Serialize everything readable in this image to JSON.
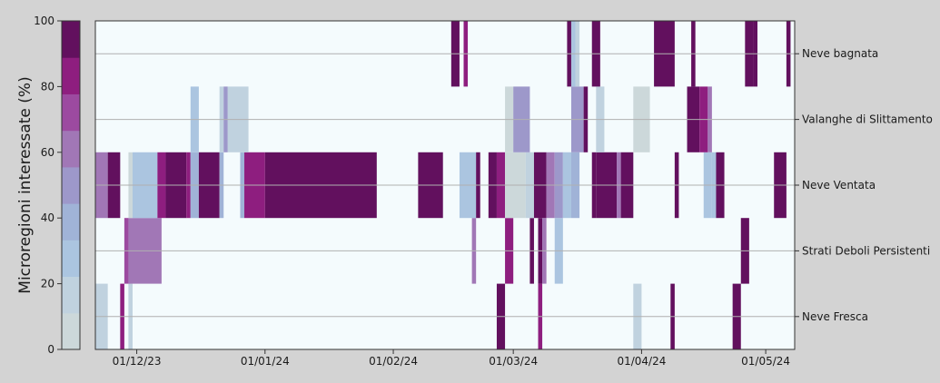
{
  "chart_data": {
    "type": "heatmap",
    "ylabel": "Microregioni interessate (%)",
    "yticks": [
      "0",
      "20",
      "40",
      "60",
      "80",
      "100"
    ],
    "ylim": [
      0,
      100
    ],
    "xlim": [
      "2023-11-21",
      "2024-05-08"
    ],
    "xticks": [
      {
        "date": "2023-12-01",
        "label": "01/12/23"
      },
      {
        "date": "2024-01-01",
        "label": "01/01/24"
      },
      {
        "date": "2024-02-01",
        "label": "01/02/24"
      },
      {
        "date": "2024-03-01",
        "label": "01/03/24"
      },
      {
        "date": "2024-04-01",
        "label": "01/04/24"
      },
      {
        "date": "2024-05-01",
        "label": "01/05/24"
      }
    ],
    "categories": [
      "Neve Fresca",
      "Strati Deboli Persistenti",
      "Neve Ventata",
      "Valanghe di Slittamento",
      "Neve bagnata"
    ],
    "colorbar": {
      "min": 0,
      "max": 100,
      "colors": [
        "#ccd8da",
        "#c0d2df",
        "#abc5e0",
        "#a0b3d7",
        "#9d98ca",
        "#a177b6",
        "#9c4aa0",
        "#8e1e7f",
        "#62105e"
      ]
    },
    "series": [
      {
        "category": "Neve Fresca",
        "days": [
          {
            "start": "2023-11-21",
            "end": "2023-11-21",
            "value": 0
          },
          {
            "start": "2023-11-21",
            "end": "2023-11-24",
            "value": 20
          },
          {
            "start": "2023-11-27",
            "end": "2023-11-28",
            "value": 88
          },
          {
            "start": "2023-11-29",
            "end": "2023-11-29",
            "value": 35
          },
          {
            "start": "2023-11-29",
            "end": "2023-11-30",
            "value": 20
          },
          {
            "start": "2024-02-26",
            "end": "2024-02-28",
            "value": 100
          },
          {
            "start": "2024-03-07",
            "end": "2024-03-08",
            "value": 85
          },
          {
            "start": "2024-03-30",
            "end": "2024-04-01",
            "value": 20
          },
          {
            "start": "2024-04-08",
            "end": "2024-04-09",
            "value": 100
          },
          {
            "start": "2024-04-23",
            "end": "2024-04-25",
            "value": 100
          }
        ]
      },
      {
        "category": "Strati Deboli Persistenti",
        "days": [
          {
            "start": "2023-11-28",
            "end": "2023-11-29",
            "value": 75
          },
          {
            "start": "2023-11-29",
            "end": "2023-12-07",
            "value": 65
          },
          {
            "start": "2024-02-20",
            "end": "2024-02-21",
            "value": 65
          },
          {
            "start": "2024-02-28",
            "end": "2024-03-01",
            "value": 78
          },
          {
            "start": "2024-03-05",
            "end": "2024-03-06",
            "value": 100
          },
          {
            "start": "2024-03-07",
            "end": "2024-03-08",
            "value": 90
          },
          {
            "start": "2024-03-08",
            "end": "2024-03-09",
            "value": 60
          },
          {
            "start": "2024-03-11",
            "end": "2024-03-13",
            "value": 30
          },
          {
            "start": "2024-04-25",
            "end": "2024-04-27",
            "value": 100
          }
        ]
      },
      {
        "category": "Neve Ventata",
        "days": [
          {
            "start": "2023-11-21",
            "end": "2023-11-24",
            "value": 60
          },
          {
            "start": "2023-11-24",
            "end": "2023-11-27",
            "value": 100
          },
          {
            "start": "2023-11-29",
            "end": "2023-11-30",
            "value": 10
          },
          {
            "start": "2023-11-30",
            "end": "2023-12-06",
            "value": 30
          },
          {
            "start": "2023-12-06",
            "end": "2023-12-08",
            "value": 85
          },
          {
            "start": "2023-12-08",
            "end": "2023-12-13",
            "value": 100
          },
          {
            "start": "2023-12-13",
            "end": "2023-12-14",
            "value": 85
          },
          {
            "start": "2023-12-14",
            "end": "2023-12-16",
            "value": 35
          },
          {
            "start": "2023-12-16",
            "end": "2023-12-21",
            "value": 100
          },
          {
            "start": "2023-12-21",
            "end": "2023-12-22",
            "value": 40
          },
          {
            "start": "2023-12-26",
            "end": "2023-12-27",
            "value": 40
          },
          {
            "start": "2023-12-27",
            "end": "2024-01-01",
            "value": 85
          },
          {
            "start": "2024-01-01",
            "end": "2024-01-28",
            "value": 100
          },
          {
            "start": "2024-02-07",
            "end": "2024-02-13",
            "value": 100
          },
          {
            "start": "2024-02-17",
            "end": "2024-02-21",
            "value": 25
          },
          {
            "start": "2024-02-21",
            "end": "2024-02-22",
            "value": 100
          },
          {
            "start": "2024-02-24",
            "end": "2024-02-26",
            "value": 100
          },
          {
            "start": "2024-02-26",
            "end": "2024-02-28",
            "value": 85
          },
          {
            "start": "2024-02-28",
            "end": "2024-03-04",
            "value": 10
          },
          {
            "start": "2024-03-04",
            "end": "2024-03-06",
            "value": 20
          },
          {
            "start": "2024-03-06",
            "end": "2024-03-09",
            "value": 100
          },
          {
            "start": "2024-03-09",
            "end": "2024-03-11",
            "value": 60
          },
          {
            "start": "2024-03-11",
            "end": "2024-03-13",
            "value": 45
          },
          {
            "start": "2024-03-13",
            "end": "2024-03-15",
            "value": 30
          },
          {
            "start": "2024-03-15",
            "end": "2024-03-17",
            "value": 35
          },
          {
            "start": "2024-03-20",
            "end": "2024-03-21",
            "value": 100
          },
          {
            "start": "2024-03-21",
            "end": "2024-03-26",
            "value": 100
          },
          {
            "start": "2024-03-26",
            "end": "2024-03-27",
            "value": 60
          },
          {
            "start": "2024-03-27",
            "end": "2024-03-30",
            "value": 100
          },
          {
            "start": "2024-04-09",
            "end": "2024-04-10",
            "value": 100
          },
          {
            "start": "2024-04-16",
            "end": "2024-04-18",
            "value": 25
          },
          {
            "start": "2024-04-18",
            "end": "2024-04-19",
            "value": 30
          },
          {
            "start": "2024-04-19",
            "end": "2024-04-21",
            "value": 100
          },
          {
            "start": "2024-05-03",
            "end": "2024-05-06",
            "value": 100
          }
        ]
      },
      {
        "category": "Valanghe di Slittamento",
        "days": [
          {
            "start": "2023-12-14",
            "end": "2023-12-16",
            "value": 25
          },
          {
            "start": "2023-12-21",
            "end": "2023-12-22",
            "value": 20
          },
          {
            "start": "2023-12-22",
            "end": "2023-12-23",
            "value": 55
          },
          {
            "start": "2023-12-23",
            "end": "2023-12-28",
            "value": 20
          },
          {
            "start": "2024-02-28",
            "end": "2024-03-01",
            "value": 5
          },
          {
            "start": "2024-03-01",
            "end": "2024-03-05",
            "value": 55
          },
          {
            "start": "2024-03-15",
            "end": "2024-03-18",
            "value": 50
          },
          {
            "start": "2024-03-18",
            "end": "2024-03-19",
            "value": 100
          },
          {
            "start": "2024-03-21",
            "end": "2024-03-23",
            "value": 15
          },
          {
            "start": "2024-03-30",
            "end": "2024-04-03",
            "value": 5
          },
          {
            "start": "2024-04-12",
            "end": "2024-04-15",
            "value": 100
          },
          {
            "start": "2024-04-15",
            "end": "2024-04-17",
            "value": 85
          },
          {
            "start": "2024-04-17",
            "end": "2024-04-18",
            "value": 60
          }
        ]
      },
      {
        "category": "Neve bagnata",
        "days": [
          {
            "start": "2024-02-15",
            "end": "2024-02-17",
            "value": 100
          },
          {
            "start": "2024-02-18",
            "end": "2024-02-19",
            "value": 85
          },
          {
            "start": "2024-03-14",
            "end": "2024-03-15",
            "value": 100
          },
          {
            "start": "2024-03-15",
            "end": "2024-03-16",
            "value": 25
          },
          {
            "start": "2024-03-16",
            "end": "2024-03-17",
            "value": 20
          },
          {
            "start": "2024-03-20",
            "end": "2024-03-22",
            "value": 100
          },
          {
            "start": "2024-04-04",
            "end": "2024-04-09",
            "value": 100
          },
          {
            "start": "2024-04-13",
            "end": "2024-04-14",
            "value": 100
          },
          {
            "start": "2024-04-26",
            "end": "2024-04-28",
            "value": 100
          },
          {
            "start": "2024-04-28",
            "end": "2024-04-29",
            "value": 90
          },
          {
            "start": "2024-05-06",
            "end": "2024-05-07",
            "value": 100
          }
        ]
      }
    ]
  }
}
